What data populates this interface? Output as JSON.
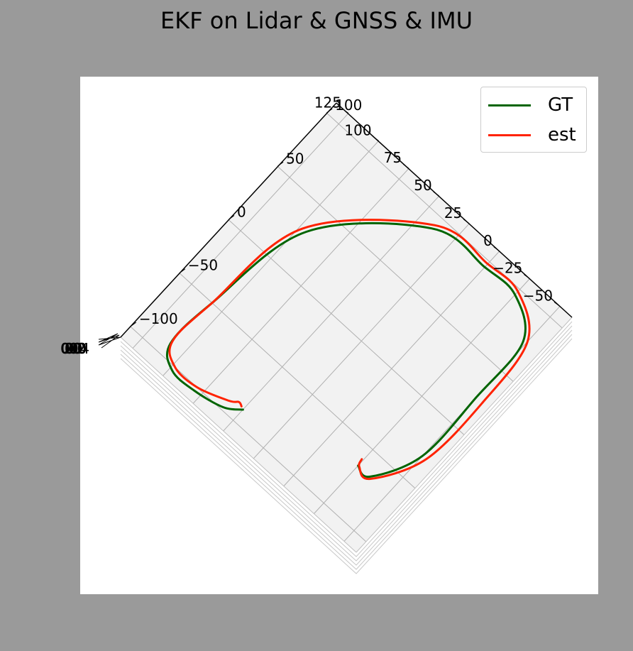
{
  "chart_data": {
    "type": "line",
    "title": "EKF on Lidar & GNSS & IMU",
    "projection": "3d",
    "xlabel": "",
    "ylabel": "",
    "zlabel": "",
    "y_axis_ticks": [
      "125",
      "100",
      "75",
      "50",
      "25",
      "0",
      "−25",
      "−50"
    ],
    "x_axis_ticks": [
      "−100",
      "−50",
      "0",
      "50",
      "100"
    ],
    "z_axis_ticks_overlapping": "0.02 0.04 0.00 0.02 0.04",
    "ylim": [
      -60,
      135
    ],
    "xlim": [
      -110,
      110
    ],
    "grid": true,
    "legend_position": "top-right",
    "series": [
      {
        "name": "GT",
        "color": "#006400",
        "x": [
          -65,
          -65,
          -30,
          25,
          75,
          95,
          95,
          90,
          30,
          -50,
          -90,
          -103,
          -103,
          -98,
          -90
        ],
        "y": [
          -25,
          -35,
          -50,
          -50,
          -48,
          -25,
          0,
          40,
          95,
          108,
          110,
          98,
          80,
          60,
          50
        ]
      },
      {
        "name": "est",
        "color": "#ff2200",
        "x": [
          -60,
          -65,
          -66,
          -30,
          25,
          77,
          98,
          98,
          93,
          30,
          -50,
          -88,
          -100,
          -100,
          -92,
          -88,
          -89
        ],
        "y": [
          -24,
          -26,
          -36,
          -53,
          -55,
          -50,
          -25,
          0,
          40,
          98,
          108,
          110,
          98,
          80,
          60,
          55,
          52
        ]
      }
    ]
  }
}
